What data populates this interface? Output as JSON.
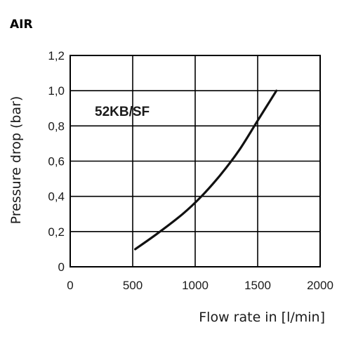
{
  "chart_data": {
    "type": "line",
    "title": "AIR",
    "xlabel": "Flow rate in [l/min]",
    "ylabel": "Pressure drop (bar)",
    "xlim": [
      0,
      2000
    ],
    "ylim": [
      0,
      1.2
    ],
    "x_ticks": [
      "0",
      "500",
      "1000",
      "1500",
      "2000"
    ],
    "y_ticks": [
      "0",
      "0,2",
      "0,4",
      "0,6",
      "0,8",
      "1,0",
      "1,2"
    ],
    "grid": true,
    "series": [
      {
        "name": "52KB/SF",
        "x": [
          520,
          700,
          900,
          1050,
          1200,
          1350,
          1500,
          1650
        ],
        "y": [
          0.1,
          0.19,
          0.3,
          0.4,
          0.52,
          0.66,
          0.83,
          1.0
        ]
      }
    ]
  }
}
